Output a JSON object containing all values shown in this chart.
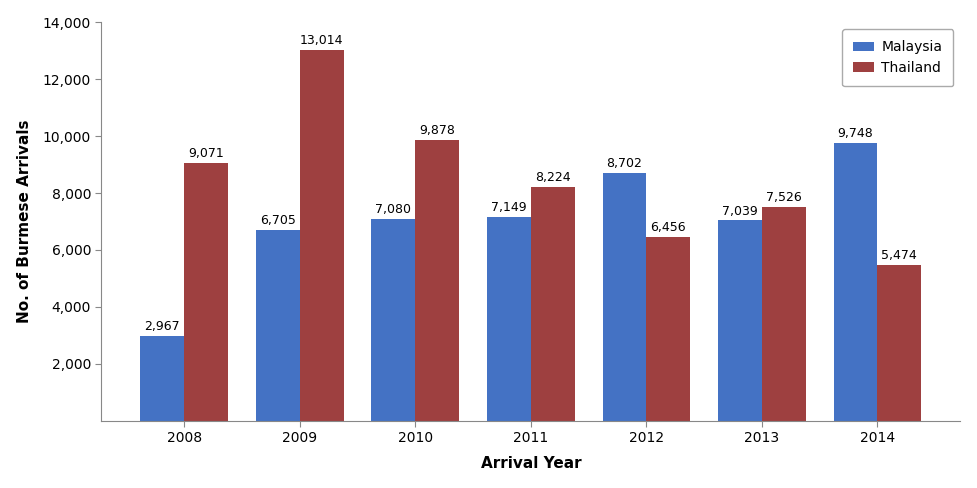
{
  "years": [
    2008,
    2009,
    2010,
    2011,
    2012,
    2013,
    2014
  ],
  "malaysia": [
    2967,
    6705,
    7080,
    7149,
    8702,
    7039,
    9748
  ],
  "thailand": [
    9071,
    13014,
    9878,
    8224,
    6456,
    7526,
    5474
  ],
  "malaysia_color": "#4472C4",
  "thailand_color": "#9E4040",
  "xlabel": "Arrival Year",
  "ylabel": "No. of Burmese Arrivals",
  "ylim": [
    0,
    14000
  ],
  "yticks": [
    2000,
    4000,
    6000,
    8000,
    10000,
    12000,
    14000
  ],
  "legend_labels": [
    "Malaysia",
    "Thailand"
  ],
  "bar_width": 0.38,
  "label_fontsize": 9,
  "axis_label_fontsize": 11,
  "tick_fontsize": 10,
  "legend_fontsize": 10
}
